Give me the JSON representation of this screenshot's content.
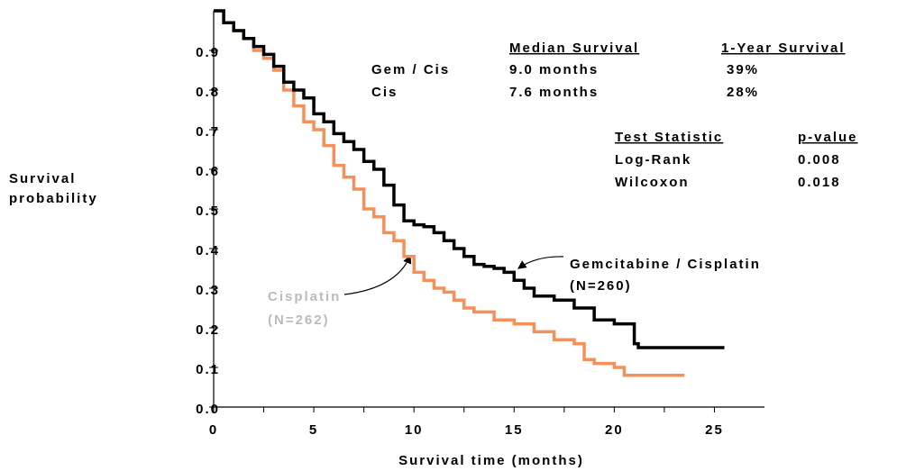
{
  "chart_data": {
    "type": "step",
    "ylabel": [
      "Survival",
      "probability"
    ],
    "xlabel": "Survival time (months)",
    "xlim": [
      0,
      27.5
    ],
    "ylim": [
      0,
      1
    ],
    "xticks": [
      0,
      5,
      10,
      15,
      20,
      25
    ],
    "xminorticks": [
      2.5,
      7.5,
      12.5,
      17.5,
      22.5
    ],
    "yticks": [
      {
        "value": 0,
        "label": "0.0"
      },
      0.1,
      0.2,
      0.3,
      0.4,
      0.5,
      0.6,
      0.7,
      0.8,
      0.9
    ],
    "series": [
      {
        "name": "Gemcitabine / Cisplatin",
        "n_label": "(N=260)",
        "color": "#000000",
        "x": [
          0,
          0.5,
          1,
          1.5,
          2,
          2.5,
          3,
          3.5,
          4,
          4.5,
          5,
          5.5,
          6,
          6.5,
          7,
          7.5,
          8,
          8.5,
          9,
          9.5,
          10,
          10.5,
          11,
          11.5,
          12,
          12.5,
          13,
          13.5,
          14,
          14.5,
          15,
          15.5,
          16,
          17,
          18,
          19,
          20,
          21,
          21.2,
          25.5
        ],
        "values": [
          1.0,
          0.97,
          0.95,
          0.93,
          0.91,
          0.89,
          0.86,
          0.82,
          0.8,
          0.78,
          0.74,
          0.72,
          0.69,
          0.67,
          0.65,
          0.62,
          0.6,
          0.56,
          0.51,
          0.47,
          0.46,
          0.455,
          0.44,
          0.42,
          0.4,
          0.38,
          0.36,
          0.355,
          0.35,
          0.34,
          0.32,
          0.3,
          0.28,
          0.27,
          0.25,
          0.22,
          0.21,
          0.16,
          0.15,
          0.15
        ]
      },
      {
        "name": "Cisplatin",
        "n_label": "(N=262)",
        "color": "#f4905a",
        "x": [
          0,
          0.5,
          1,
          1.5,
          2,
          2.5,
          3,
          3.5,
          4,
          4.5,
          5,
          5.5,
          6,
          6.5,
          7,
          7.5,
          8,
          8.5,
          9,
          9.5,
          10,
          10.5,
          11,
          11.5,
          12,
          12.5,
          13,
          14,
          15,
          16,
          17,
          18,
          18.5,
          19,
          20,
          20.5,
          23.5
        ],
        "values": [
          1.0,
          0.97,
          0.95,
          0.93,
          0.9,
          0.88,
          0.85,
          0.8,
          0.76,
          0.72,
          0.7,
          0.66,
          0.61,
          0.58,
          0.55,
          0.5,
          0.48,
          0.44,
          0.42,
          0.38,
          0.34,
          0.32,
          0.3,
          0.29,
          0.27,
          0.25,
          0.24,
          0.22,
          0.21,
          0.19,
          0.17,
          0.16,
          0.12,
          0.11,
          0.1,
          0.08,
          0.08
        ]
      }
    ],
    "summary_table": {
      "header": [
        "Median Survival",
        "1-Year Survival"
      ],
      "rows": [
        [
          "Gem / Cis",
          "9.0 months",
          "39%"
        ],
        [
          "Cis",
          "7.6 months",
          "28%"
        ]
      ]
    },
    "test_table": {
      "header": [
        "Test Statistic",
        "p-value"
      ],
      "rows": [
        [
          "Log-Rank",
          "0.008"
        ],
        [
          "Wilcoxon",
          "0.018"
        ]
      ]
    }
  }
}
